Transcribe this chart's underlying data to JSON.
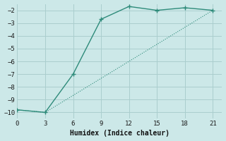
{
  "line1_x": [
    0,
    3,
    6,
    9,
    12,
    15,
    18,
    21
  ],
  "line1_y": [
    -9.8,
    -10,
    -7,
    -2.7,
    -1.7,
    -2.0,
    -1.8,
    -2.0
  ],
  "line2_x": [
    0,
    3,
    21
  ],
  "line2_y": [
    -9.8,
    -10,
    -2.0
  ],
  "color": "#2e8b7a",
  "xlabel": "Humidex (Indice chaleur)",
  "xlim": [
    0,
    22
  ],
  "ylim": [
    -10.5,
    -1.5
  ],
  "xticks": [
    0,
    3,
    6,
    9,
    12,
    15,
    18,
    21
  ],
  "yticks": [
    -10,
    -9,
    -8,
    -7,
    -6,
    -5,
    -4,
    -3,
    -2
  ],
  "bg_color": "#cce8e8",
  "grid_color": "#aacece",
  "font_family": "monospace",
  "figsize": [
    3.2,
    2.0
  ],
  "dpi": 100
}
